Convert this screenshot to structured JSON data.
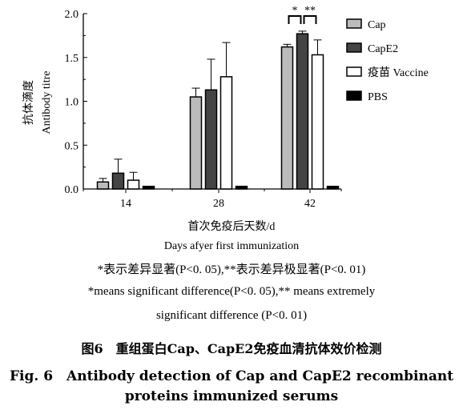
{
  "chart_data": {
    "type": "bar",
    "categories": [
      "14",
      "28",
      "42"
    ],
    "series": [
      {
        "name": "Cap",
        "values": [
          0.08,
          1.05,
          1.62
        ],
        "errors": [
          0.04,
          0.1,
          0.03
        ],
        "color": "#bbbbbb"
      },
      {
        "name": "CapE2",
        "values": [
          0.18,
          1.13,
          1.77
        ],
        "errors": [
          0.16,
          0.35,
          0.03
        ],
        "color": "#444444"
      },
      {
        "name": "疫苗 Vaccine",
        "values": [
          0.1,
          1.28,
          1.53
        ],
        "errors": [
          0.09,
          0.39,
          0.17
        ],
        "color": "#ffffff"
      },
      {
        "name": "PBS",
        "values": [
          0.03,
          0.03,
          0.03
        ],
        "errors": [
          0,
          0,
          0
        ],
        "color": "#000000"
      }
    ],
    "ylim": [
      0,
      2.0
    ],
    "yticks": [
      "0.0",
      "0.5",
      "1.0",
      "1.5",
      "2.0"
    ],
    "ylabel_cn": "抗体滴度",
    "ylabel_en": "Antibody titre",
    "xlabel_cn": "首次免疫后天数/d",
    "xlabel_en": "Days afyer first immunization",
    "significance": [
      {
        "label": "*",
        "category": "42",
        "from_series": 0,
        "to_series": 1
      },
      {
        "label": "**",
        "category": "42",
        "from_series": 1,
        "to_series": 2
      }
    ],
    "legend_position": "right"
  },
  "notes": {
    "line1": "*表示差异显著(P<0. 05),**表示差异极显著(P<0. 01)",
    "line2": "*means significant difference(P<0. 05),** means extremely",
    "line3": "significant difference (P<0. 01)"
  },
  "figure": {
    "title_cn": "图6　重组蛋白Cap、CapE2免疫血清抗体效价检测",
    "title_en_line1": "Fig. 6　Antibody detection of Cap and CapE2 recombinant",
    "title_en_line2": "proteins immunized serums"
  }
}
